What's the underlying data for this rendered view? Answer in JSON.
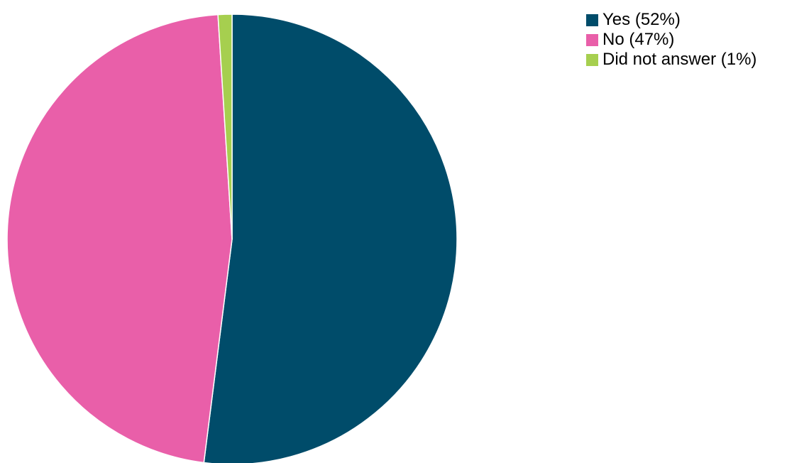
{
  "chart_data": {
    "type": "pie",
    "title": "",
    "slices": [
      {
        "label": "Yes (52%)",
        "value": 52,
        "color": "#004c6a"
      },
      {
        "label": "No (47%)",
        "value": 47,
        "color": "#e95fa9"
      },
      {
        "label": "Did not answer (1%)",
        "value": 1,
        "color": "#a6cf4f"
      }
    ],
    "start_angle_deg": 0,
    "direction": "clockwise",
    "legend_position": "top-right"
  }
}
